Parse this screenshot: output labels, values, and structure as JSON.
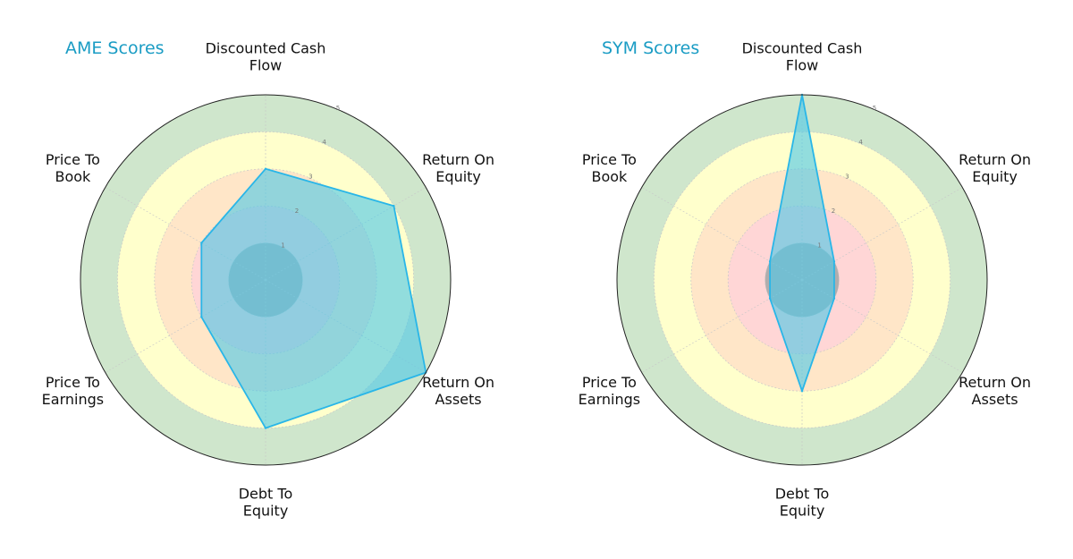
{
  "chart_data": [
    {
      "type": "radar",
      "title": "AME Scores",
      "axes": [
        [
          "Discounted Cash",
          "Flow"
        ],
        [
          "Return On",
          "Equity"
        ],
        [
          "Return On",
          "Assets"
        ],
        [
          "Debt To",
          "Equity"
        ],
        [
          "Price To",
          "Earnings"
        ],
        [
          "Price To",
          "Book"
        ]
      ],
      "values": [
        3,
        4,
        5,
        4,
        2,
        2
      ],
      "rmax": 5,
      "ticks": [
        1,
        2,
        3,
        4,
        5
      ],
      "grid": true,
      "bands": [
        {
          "from": 0,
          "to": 1,
          "color": "#a9a9a9"
        },
        {
          "from": 1,
          "to": 2,
          "color": "#ffd6d6"
        },
        {
          "from": 2,
          "to": 3,
          "color": "#ffe6c8"
        },
        {
          "from": 3,
          "to": 4,
          "color": "#ffffcc"
        },
        {
          "from": 4,
          "to": 5,
          "color": "#cfe6cc"
        }
      ],
      "series_color": "#29b6e8",
      "fill_color": "#4fc8e6"
    },
    {
      "type": "radar",
      "title": "SYM Scores",
      "axes": [
        [
          "Discounted Cash",
          "Flow"
        ],
        [
          "Return On",
          "Equity"
        ],
        [
          "Return On",
          "Assets"
        ],
        [
          "Debt To",
          "Equity"
        ],
        [
          "Price To",
          "Earnings"
        ],
        [
          "Price To",
          "Book"
        ]
      ],
      "values": [
        5,
        1,
        1,
        3,
        1,
        1
      ],
      "rmax": 5,
      "ticks": [
        1,
        2,
        3,
        4,
        5
      ],
      "grid": true,
      "bands": [
        {
          "from": 0,
          "to": 1,
          "color": "#a9a9a9"
        },
        {
          "from": 1,
          "to": 2,
          "color": "#ffd6d6"
        },
        {
          "from": 2,
          "to": 3,
          "color": "#ffe6c8"
        },
        {
          "from": 3,
          "to": 4,
          "color": "#ffffcc"
        },
        {
          "from": 4,
          "to": 5,
          "color": "#cfe6cc"
        }
      ],
      "series_color": "#29b6e8",
      "fill_color": "#4fc8e6"
    }
  ]
}
